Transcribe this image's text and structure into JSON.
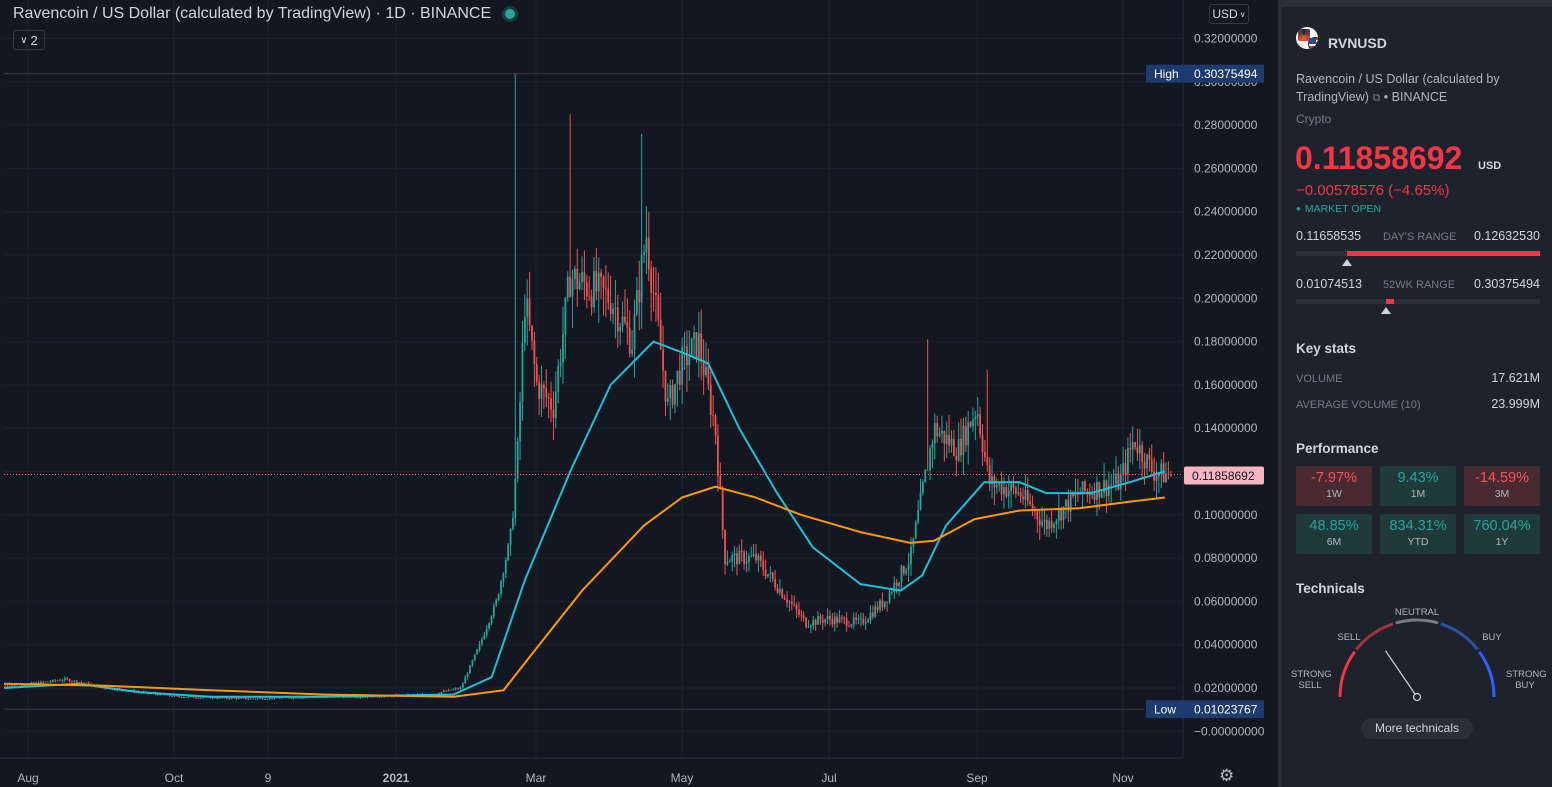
{
  "chart": {
    "title": "Ravencoin / US Dollar (calculated by TradingView) · 1D · BINANCE",
    "indicator_count": "2",
    "currency_button": "USD",
    "y_ticks": [
      "0.32000000",
      "0.30000000",
      "0.28000000",
      "0.26000000",
      "0.24000000",
      "0.22000000",
      "0.20000000",
      "0.18000000",
      "0.16000000",
      "0.14000000",
      "0.12000000",
      "0.10000000",
      "0.08000000",
      "0.06000000",
      "0.04000000",
      "0.02000000",
      "−0.00000000"
    ],
    "x_ticks": [
      "Aug",
      "Oct",
      "9",
      "2021",
      "Mar",
      "May",
      "Jul",
      "Sep",
      "Nov"
    ],
    "high_label": "High",
    "high_value": "0.30375494",
    "low_label": "Low",
    "low_value": "0.01023767",
    "last_price_label": "0.11858692",
    "colors": {
      "background": "#131722",
      "up": "#26a69a",
      "down": "#ef5350",
      "ma_fast": "#1ec0d6",
      "ma_slow": "#ff9800",
      "last_price": "#f7525f"
    },
    "settings_icon": "gear-icon"
  },
  "chart_data": {
    "type": "candlestick",
    "title": "Ravencoin / US Dollar (calculated by TradingView) · 1D · BINANCE",
    "x_range": [
      "2020-07-20",
      "2021-11-23"
    ],
    "ylim": [
      -0.005,
      0.325
    ],
    "y_unit": "USD",
    "grid": true,
    "price_outline": [
      [
        "2020-07-20",
        0.021
      ],
      [
        "2020-08-01",
        0.022
      ],
      [
        "2020-08-15",
        0.024
      ],
      [
        "2020-09-01",
        0.02
      ],
      [
        "2020-10-01",
        0.016
      ],
      [
        "2020-11-01",
        0.015
      ],
      [
        "2020-12-01",
        0.016
      ],
      [
        "2020-12-20",
        0.016
      ],
      [
        "2021-01-15",
        0.017
      ],
      [
        "2021-01-28",
        0.02
      ],
      [
        "2021-02-05",
        0.04
      ],
      [
        "2021-02-12",
        0.06
      ],
      [
        "2021-02-18",
        0.09
      ],
      [
        "2021-02-21",
        0.13
      ],
      [
        "2021-02-24",
        0.2
      ],
      [
        "2021-03-01",
        0.16
      ],
      [
        "2021-03-08",
        0.15
      ],
      [
        "2021-03-15",
        0.21
      ],
      [
        "2021-04-01",
        0.2
      ],
      [
        "2021-04-10",
        0.18
      ],
      [
        "2021-04-16",
        0.23
      ],
      [
        "2021-04-25",
        0.15
      ],
      [
        "2021-05-01",
        0.17
      ],
      [
        "2021-05-08",
        0.18
      ],
      [
        "2021-05-15",
        0.14
      ],
      [
        "2021-05-19",
        0.08
      ],
      [
        "2021-06-01",
        0.08
      ],
      [
        "2021-06-15",
        0.06
      ],
      [
        "2021-06-22",
        0.05
      ],
      [
        "2021-07-01",
        0.052
      ],
      [
        "2021-07-15",
        0.05
      ],
      [
        "2021-07-25",
        0.06
      ],
      [
        "2021-08-05",
        0.08
      ],
      [
        "2021-08-15",
        0.14
      ],
      [
        "2021-08-25",
        0.13
      ],
      [
        "2021-09-02",
        0.15
      ],
      [
        "2021-09-07",
        0.115
      ],
      [
        "2021-09-20",
        0.11
      ],
      [
        "2021-10-01",
        0.095
      ],
      [
        "2021-10-15",
        0.11
      ],
      [
        "2021-11-01",
        0.115
      ],
      [
        "2021-11-07",
        0.135
      ],
      [
        "2021-11-15",
        0.12
      ],
      [
        "2021-11-20",
        0.1186
      ]
    ],
    "series": [
      {
        "name": "",
        "color": "#1ec0d6",
        "points": [
          [
            "2020-07-20",
            0.02
          ],
          [
            "2020-08-20",
            0.022
          ],
          [
            "2020-09-15",
            0.018
          ],
          [
            "2020-10-15",
            0.016
          ],
          [
            "2020-12-01",
            0.016
          ],
          [
            "2021-01-25",
            0.017
          ],
          [
            "2021-02-10",
            0.025
          ],
          [
            "2021-02-24",
            0.07
          ],
          [
            "2021-03-15",
            0.12
          ],
          [
            "2021-04-01",
            0.16
          ],
          [
            "2021-04-19",
            0.18
          ],
          [
            "2021-05-01",
            0.175
          ],
          [
            "2021-05-12",
            0.17
          ],
          [
            "2021-05-25",
            0.14
          ],
          [
            "2021-06-10",
            0.11
          ],
          [
            "2021-06-25",
            0.085
          ],
          [
            "2021-07-15",
            0.068
          ],
          [
            "2021-08-01",
            0.065
          ],
          [
            "2021-08-10",
            0.072
          ],
          [
            "2021-08-20",
            0.095
          ],
          [
            "2021-09-05",
            0.115
          ],
          [
            "2021-09-20",
            0.115
          ],
          [
            "2021-10-01",
            0.11
          ],
          [
            "2021-10-20",
            0.11
          ],
          [
            "2021-11-05",
            0.115
          ],
          [
            "2021-11-20",
            0.12
          ]
        ]
      },
      {
        "name": "",
        "color": "#ff9800",
        "points": [
          [
            "2020-07-20",
            0.022
          ],
          [
            "2020-09-01",
            0.021
          ],
          [
            "2020-10-15",
            0.019
          ],
          [
            "2020-12-01",
            0.017
          ],
          [
            "2021-01-25",
            0.016
          ],
          [
            "2021-02-15",
            0.019
          ],
          [
            "2021-02-25",
            0.033
          ],
          [
            "2021-03-20",
            0.065
          ],
          [
            "2021-04-15",
            0.095
          ],
          [
            "2021-05-01",
            0.108
          ],
          [
            "2021-05-15",
            0.113
          ],
          [
            "2021-06-01",
            0.108
          ],
          [
            "2021-06-20",
            0.1
          ],
          [
            "2021-07-15",
            0.092
          ],
          [
            "2021-08-05",
            0.087
          ],
          [
            "2021-08-15",
            0.088
          ],
          [
            "2021-09-01",
            0.098
          ],
          [
            "2021-09-20",
            0.102
          ],
          [
            "2021-10-15",
            0.103
          ],
          [
            "2021-11-05",
            0.106
          ],
          [
            "2021-11-20",
            0.108
          ]
        ]
      }
    ],
    "high": 0.30375494,
    "low": 0.01023767,
    "last": 0.11858692
  },
  "panel": {
    "symbol": "RVNUSD",
    "description": "Ravencoin / US Dollar (calculated by TradingView)",
    "exchange": "• BINANCE",
    "external_icon": "external-link-icon",
    "asset_type": "Crypto",
    "price": "0.11858692",
    "price_currency": "USD",
    "change": "−0.00578576 (−4.65%)",
    "market_status": "MARKET OPEN",
    "days_range": {
      "low": "0.11658535",
      "label": "DAY'S RANGE",
      "high": "0.12632530",
      "fill_from": 0.21,
      "fill_to": 1.0,
      "pointer": 0.21
    },
    "wk52_range": {
      "low": "0.01074513",
      "label": "52WK RANGE",
      "high": "0.30375494",
      "fill_from": 0.37,
      "fill_to": 0.4,
      "pointer": 0.37
    },
    "key_stats_title": "Key stats",
    "stats": [
      {
        "label": "Volume",
        "value": "17.621M"
      },
      {
        "label": "Average Volume (10)",
        "value": "23.999M"
      }
    ],
    "performance_title": "Performance",
    "performance": [
      {
        "value": "-7.97%",
        "period": "1W",
        "dir": "neg"
      },
      {
        "value": "9.43%",
        "period": "1M",
        "dir": "pos"
      },
      {
        "value": "-14.59%",
        "period": "3M",
        "dir": "neg"
      },
      {
        "value": "48.85%",
        "period": "6M",
        "dir": "pos"
      },
      {
        "value": "834.31%",
        "period": "YTD",
        "dir": "pos"
      },
      {
        "value": "760.04%",
        "period": "1Y",
        "dir": "pos"
      }
    ],
    "technicals_title": "Technicals",
    "gauge": {
      "strong_sell": "STRONG\nSELL",
      "sell": "SELL",
      "neutral": "NEUTRAL",
      "buy": "BUY",
      "strong_buy": "STRONG\nBUY",
      "needle_level": 0.31
    },
    "more_button": "More technicals"
  }
}
